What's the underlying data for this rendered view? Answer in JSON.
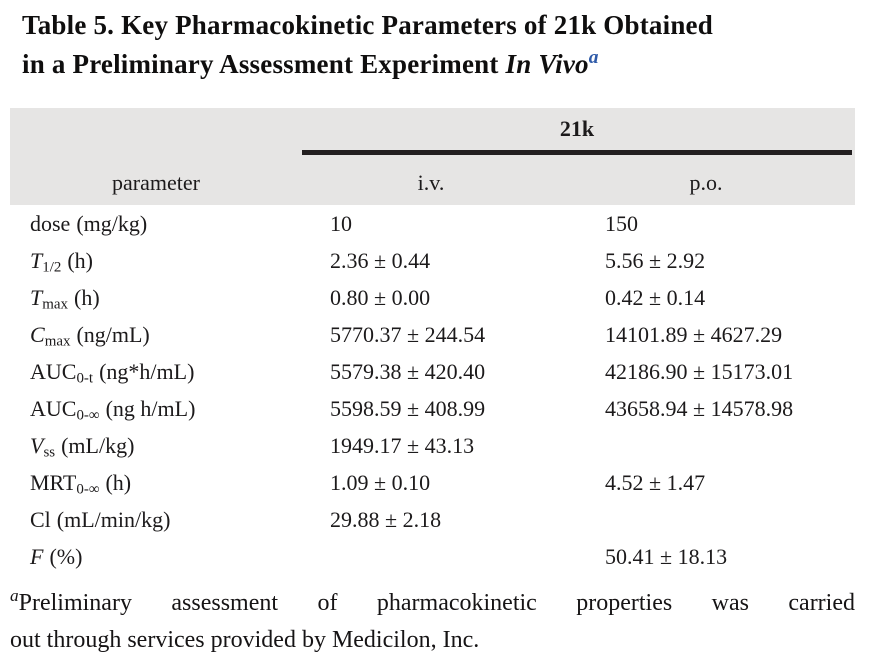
{
  "colors": {
    "background": "#ffffff",
    "header_band": "#e6e5e4",
    "rule": "#231f20",
    "text": "#1c1a1b",
    "superscript_blue": "#2e5aa8"
  },
  "title": {
    "line1": "Table 5. Key Pharmacokinetic Parameters of 21k Obtained",
    "line2_prefix": "in a Preliminary Assessment Experiment ",
    "line2_italic": "In Vivo",
    "superscript": "a"
  },
  "table": {
    "group_header": "21k",
    "columns": [
      "parameter",
      "i.v.",
      "p.o."
    ],
    "rows": [
      {
        "param": "dose",
        "sub": "",
        "unit": "(mg/kg)",
        "iv": "10",
        "po": "150"
      },
      {
        "param": "T",
        "sub": "1/2",
        "unit": "(h)",
        "iv": "2.36 ± 0.44",
        "po": "5.56 ± 2.92"
      },
      {
        "param": "T",
        "sub": "max",
        "unit": "(h)",
        "iv": "0.80 ± 0.00",
        "po": "0.42 ± 0.14"
      },
      {
        "param": "C",
        "sub": "max",
        "unit": "(ng/mL)",
        "iv": "5770.37 ± 244.54",
        "po": "14101.89 ± 4627.29"
      },
      {
        "param": "AUC",
        "sub": "0-t",
        "unit": "(ng*h/mL)",
        "iv": "5579.38 ± 420.40",
        "po": "42186.90 ± 15173.01"
      },
      {
        "param": "AUC",
        "sub": "0-∞",
        "unit": "(ng h/mL)",
        "iv": "5598.59 ± 408.99",
        "po": "43658.94 ± 14578.98"
      },
      {
        "param": "V",
        "sub": "ss",
        "unit": "(mL/kg)",
        "iv": "1949.17 ± 43.13",
        "po": ""
      },
      {
        "param": "MRT",
        "sub": "0-∞",
        "unit": "(h)",
        "iv": "1.09 ± 0.10",
        "po": "4.52 ± 1.47"
      },
      {
        "param": "Cl",
        "sub": "",
        "unit": "(mL/min/kg)",
        "iv": "29.88 ± 2.18",
        "po": ""
      },
      {
        "param": "F",
        "sub": "",
        "unit": "(%)",
        "iv": "",
        "po": "50.41 ± 18.13"
      }
    ]
  },
  "footnote": {
    "marker": "a",
    "line1": "Preliminary assessment of pharmacokinetic properties was carried",
    "line2": "out through services provided by Medicilon, Inc."
  }
}
